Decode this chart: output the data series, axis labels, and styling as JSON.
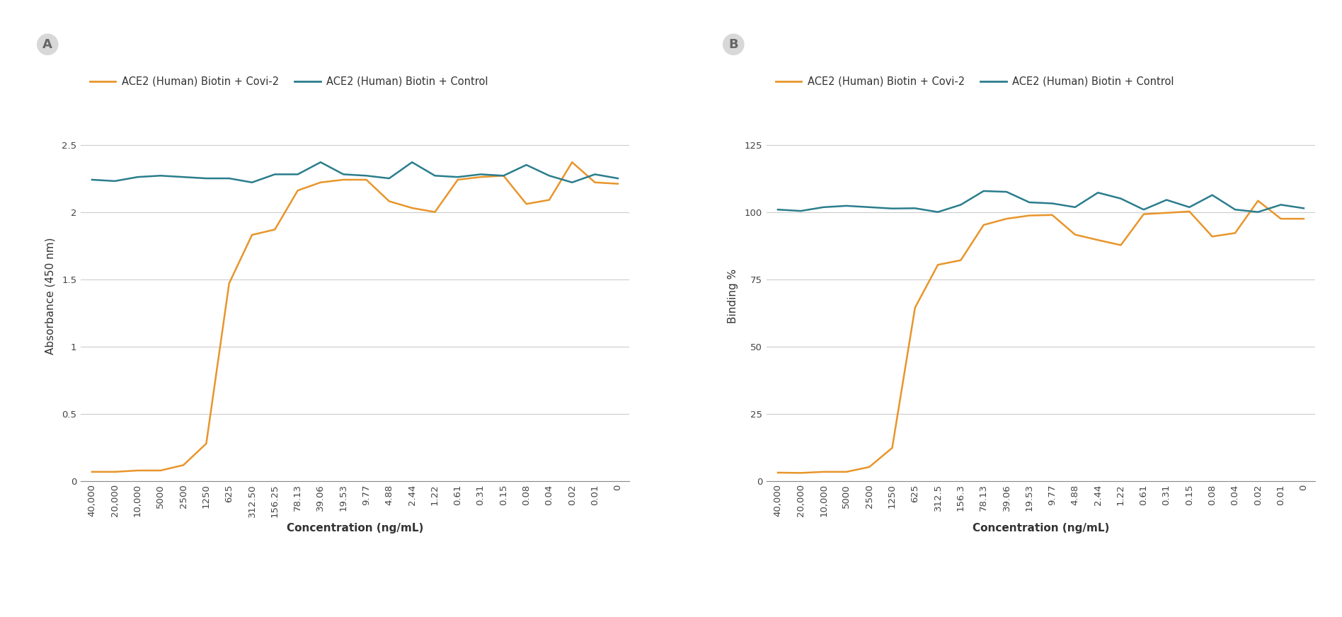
{
  "x_labels_A": [
    "40,000",
    "20,000",
    "10,000",
    "5000",
    "2500",
    "1250",
    "625",
    "312.50",
    "156.25",
    "78.13",
    "39.06",
    "19.53",
    "9.77",
    "4.88",
    "2.44",
    "1.22",
    "0.61",
    "0.31",
    "0.15",
    "0.08",
    "0.04",
    "0.02",
    "0.01",
    "0"
  ],
  "x_labels_B": [
    "40,000",
    "20,000",
    "10,000",
    "5000",
    "2500",
    "1250",
    "625",
    "312.5",
    "156.3",
    "78.13",
    "39.06",
    "19.53",
    "9.77",
    "4.88",
    "2.44",
    "1.22",
    "0.61",
    "0.31",
    "0.15",
    "0.08",
    "0.04",
    "0.02",
    "0.01",
    "0"
  ],
  "covi2_A": [
    0.07,
    0.07,
    0.08,
    0.08,
    0.12,
    0.28,
    1.47,
    1.83,
    1.87,
    2.16,
    2.22,
    2.24,
    2.24,
    2.08,
    2.03,
    2.0,
    2.24,
    2.26,
    2.27,
    2.06,
    2.09,
    2.37,
    2.22,
    2.21
  ],
  "control_A": [
    2.24,
    2.23,
    2.26,
    2.27,
    2.26,
    2.25,
    2.25,
    2.22,
    2.28,
    2.28,
    2.37,
    2.28,
    2.27,
    2.25,
    2.37,
    2.27,
    2.26,
    2.28,
    2.27,
    2.35,
    2.27,
    2.22,
    2.28,
    2.25
  ],
  "covi2_B": [
    3.2,
    3.1,
    3.5,
    3.5,
    5.3,
    12.4,
    64.5,
    80.4,
    82.1,
    95.2,
    97.5,
    98.7,
    98.9,
    91.6,
    89.6,
    87.7,
    99.2,
    99.7,
    100.2,
    90.9,
    92.2,
    104.2,
    97.5,
    97.5
  ],
  "control_B": [
    100.9,
    100.4,
    101.8,
    102.3,
    101.8,
    101.3,
    101.4,
    100.0,
    102.7,
    107.8,
    107.5,
    103.6,
    103.2,
    101.8,
    107.2,
    105.0,
    100.9,
    104.5,
    101.8,
    106.3,
    100.9,
    100.0,
    102.7,
    101.4
  ],
  "orange_color": "#E8952A",
  "teal_color": "#2A7D8C",
  "legend_label_covi2": "ACE2 (Human) Biotin + Covi-2",
  "legend_label_control": "ACE2 (Human) Biotin + Control",
  "xlabel": "Concentration (ng/mL)",
  "ylabel_A": "Absorbance (450 nm)",
  "ylabel_B": "Binding %",
  "ylim_A": [
    0,
    2.75
  ],
  "yticks_A": [
    0,
    0.5,
    1.0,
    1.5,
    2.0,
    2.5
  ],
  "ylim_B": [
    0,
    137.5
  ],
  "yticks_B": [
    0,
    25,
    50,
    75,
    100,
    125
  ],
  "panel_A_label": "A",
  "panel_B_label": "B",
  "background_color": "#ffffff",
  "grid_color": "#cccccc",
  "tick_label_fontsize": 9.5,
  "axis_label_fontsize": 11,
  "legend_fontsize": 10.5,
  "panel_label_fontsize": 13
}
